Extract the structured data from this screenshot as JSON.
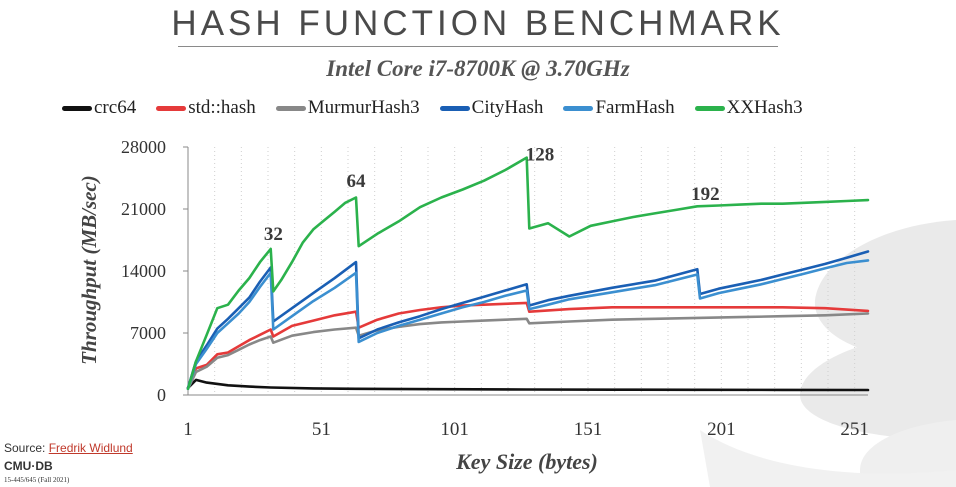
{
  "slide": {
    "title": "HASH FUNCTION BENCHMARK",
    "source_prefix": "Source: ",
    "source_link": "Fredrik Widlund",
    "logo_text": "CMU·DB",
    "course": "15-445/645 (Fall 2021)"
  },
  "chart_data": {
    "type": "line",
    "title": "Intel Core i7-8700K @ 3.70GHz",
    "xlabel": "Key Size (bytes)",
    "ylabel": "Throughput (MB/sec)",
    "xlim": [
      1,
      256
    ],
    "ylim": [
      0,
      28000
    ],
    "xticks": [
      1,
      51,
      101,
      151,
      201,
      251
    ],
    "yticks": [
      0,
      7000,
      14000,
      21000,
      28000
    ],
    "grid": "vertical dotted",
    "legend_position": "top",
    "annotations": [
      {
        "text": "32",
        "x": 33,
        "y": 17500
      },
      {
        "text": "64",
        "x": 64,
        "y": 23500
      },
      {
        "text": "128",
        "x": 133,
        "y": 26500
      },
      {
        "text": "192",
        "x": 195,
        "y": 22000
      }
    ],
    "series": [
      {
        "name": "crc64",
        "color": "#111111",
        "x": [
          1,
          4,
          8,
          16,
          24,
          32,
          48,
          64,
          96,
          128,
          160,
          192,
          224,
          256
        ],
        "y": [
          800,
          1700,
          1400,
          1100,
          950,
          850,
          750,
          700,
          650,
          620,
          600,
          590,
          580,
          570
        ]
      },
      {
        "name": "std::hash",
        "color": "#e53a3a",
        "x": [
          1,
          4,
          8,
          12,
          16,
          20,
          24,
          28,
          32,
          33,
          40,
          48,
          56,
          64,
          65,
          72,
          80,
          88,
          96,
          104,
          112,
          120,
          128,
          129,
          144,
          160,
          176,
          192,
          208,
          224,
          240,
          256
        ],
        "y": [
          800,
          3000,
          3400,
          4600,
          4800,
          5500,
          6200,
          6800,
          7400,
          6600,
          7800,
          8400,
          9000,
          9400,
          7600,
          8500,
          9200,
          9600,
          9900,
          10100,
          10200,
          10300,
          10400,
          9400,
          9700,
          9900,
          9900,
          9900,
          9900,
          9900,
          9800,
          9500
        ]
      },
      {
        "name": "MurmurHash3",
        "color": "#888888",
        "x": [
          1,
          4,
          8,
          12,
          16,
          20,
          24,
          28,
          32,
          33,
          40,
          48,
          56,
          64,
          65,
          72,
          80,
          88,
          96,
          104,
          112,
          120,
          128,
          129,
          144,
          160,
          176,
          192,
          208,
          224,
          240,
          256
        ],
        "y": [
          700,
          2600,
          3200,
          4200,
          4500,
          5100,
          5700,
          6200,
          6600,
          5900,
          6700,
          7100,
          7400,
          7600,
          6700,
          7300,
          7700,
          8000,
          8200,
          8300,
          8400,
          8500,
          8600,
          8100,
          8300,
          8500,
          8600,
          8700,
          8800,
          8900,
          9000,
          9200
        ]
      },
      {
        "name": "CityHash",
        "color": "#1a5fb4",
        "x": [
          1,
          4,
          8,
          12,
          16,
          20,
          24,
          28,
          32,
          33,
          40,
          48,
          56,
          64,
          65,
          72,
          80,
          88,
          96,
          104,
          112,
          120,
          128,
          129,
          136,
          144,
          160,
          176,
          192,
          193,
          200,
          208,
          216,
          224,
          232,
          240,
          248,
          256
        ],
        "y": [
          800,
          3800,
          5600,
          7500,
          8600,
          9800,
          11000,
          12800,
          14400,
          8300,
          9800,
          11500,
          13200,
          15000,
          6400,
          7400,
          8200,
          8900,
          9700,
          10400,
          11100,
          11800,
          12500,
          10100,
          10700,
          11200,
          12100,
          12900,
          14200,
          11400,
          12000,
          12500,
          13000,
          13600,
          14200,
          14800,
          15500,
          16200
        ]
      },
      {
        "name": "FarmHash",
        "color": "#3b8fd0",
        "x": [
          1,
          4,
          8,
          12,
          16,
          20,
          24,
          28,
          32,
          33,
          40,
          48,
          56,
          64,
          65,
          72,
          80,
          88,
          96,
          104,
          112,
          120,
          128,
          129,
          136,
          144,
          160,
          176,
          192,
          193,
          200,
          208,
          216,
          224,
          232,
          240,
          248,
          256
        ],
        "y": [
          700,
          3500,
          5200,
          7000,
          8100,
          9200,
          10500,
          12200,
          13800,
          7400,
          8900,
          10600,
          12100,
          13800,
          6000,
          7000,
          7800,
          8500,
          9200,
          9900,
          10500,
          11200,
          11800,
          9700,
          10200,
          10800,
          11600,
          12400,
          13600,
          10900,
          11500,
          12000,
          12500,
          13100,
          13700,
          14300,
          14900,
          15200
        ]
      },
      {
        "name": "XXHash3",
        "color": "#2bb24c",
        "x": [
          1,
          4,
          8,
          12,
          16,
          20,
          24,
          28,
          32,
          33,
          36,
          40,
          44,
          48,
          52,
          56,
          60,
          64,
          65,
          72,
          80,
          88,
          96,
          104,
          112,
          120,
          128,
          129,
          136,
          144,
          152,
          160,
          168,
          176,
          184,
          192,
          200,
          208,
          216,
          224,
          232,
          240,
          248,
          256
        ],
        "y": [
          700,
          3800,
          6800,
          9800,
          10200,
          11800,
          13200,
          15000,
          16500,
          11700,
          13000,
          15000,
          17200,
          18700,
          19700,
          20700,
          21700,
          22300,
          16800,
          18200,
          19600,
          21200,
          22300,
          23200,
          24200,
          25400,
          26800,
          18800,
          19400,
          17900,
          19100,
          19600,
          20100,
          20500,
          20900,
          21300,
          21400,
          21500,
          21600,
          21600,
          21700,
          21800,
          21900,
          22000
        ]
      }
    ]
  }
}
